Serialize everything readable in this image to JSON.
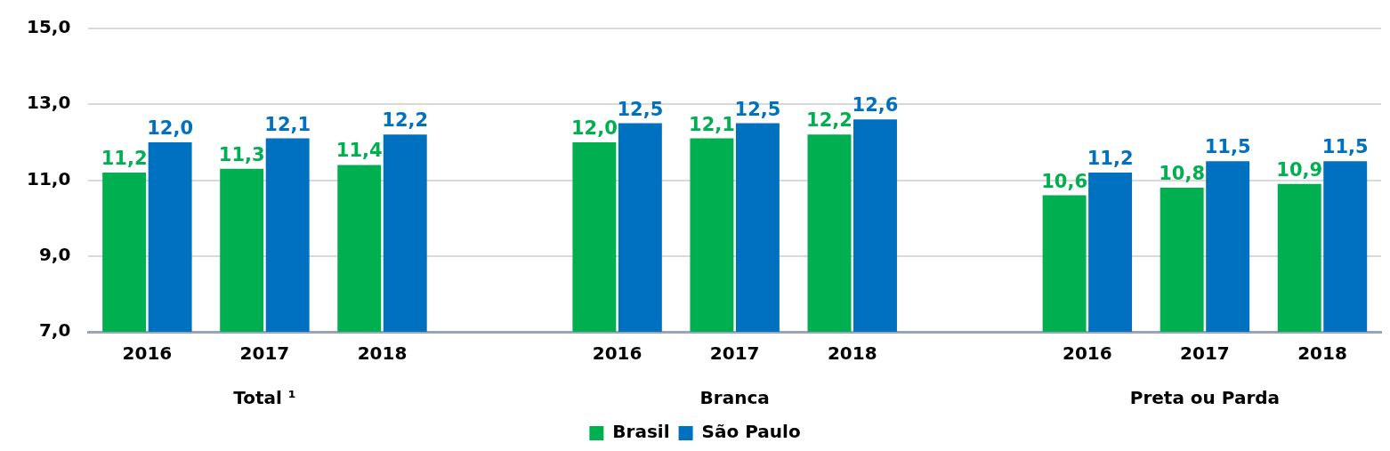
{
  "chart_data": {
    "type": "bar",
    "categories": [
      "2016",
      "2017",
      "2018",
      null,
      "2016",
      "2017",
      "2018",
      null,
      "2016",
      "2017",
      "2018"
    ],
    "series": [
      {
        "name": "Brasil",
        "color": "#00b050",
        "values": [
          11.2,
          11.3,
          11.4,
          null,
          12.0,
          12.1,
          12.2,
          null,
          10.6,
          10.8,
          10.9
        ],
        "value_labels": [
          "11,2",
          "11,3",
          "11,4",
          null,
          "12,0",
          "12,1",
          "12,2",
          null,
          "10,6",
          "10,8",
          "10,9"
        ]
      },
      {
        "name": "São Paulo",
        "color": "#0070c0",
        "values": [
          12.0,
          12.1,
          12.2,
          null,
          12.5,
          12.5,
          12.6,
          null,
          11.2,
          11.5,
          11.5
        ],
        "value_labels": [
          "12,0",
          "12,1",
          "12,2",
          null,
          "12,5",
          "12,5",
          "12,6",
          null,
          "11,2",
          "11,5",
          "11,5"
        ]
      }
    ],
    "ylim": [
      7,
      15
    ],
    "yticks": [
      {
        "value": 7,
        "label": "7,0"
      },
      {
        "value": 9,
        "label": "9,0"
      },
      {
        "value": 11,
        "label": "11,0"
      },
      {
        "value": 13,
        "label": "13,0"
      },
      {
        "value": 15,
        "label": "15,0"
      }
    ],
    "grid": "y",
    "legend": "bottom",
    "annotations": [
      "Total ¹",
      "Branca",
      "Preta ou Parda"
    ]
  }
}
